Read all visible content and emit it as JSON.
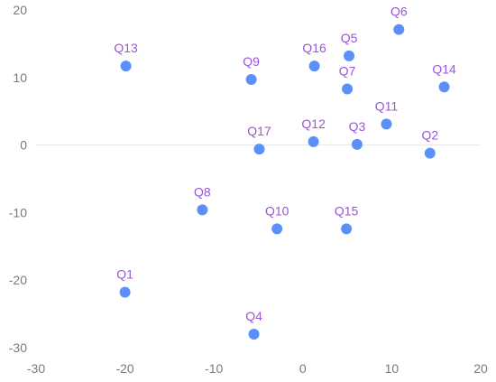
{
  "chart_data": {
    "type": "scatter",
    "title": "",
    "xlabel": "",
    "ylabel": "",
    "xlim": [
      -30,
      20
    ],
    "ylim": [
      -30,
      20
    ],
    "x_ticks": [
      "-30",
      "-20",
      "-10",
      "0",
      "10",
      "20"
    ],
    "y_ticks": [
      "20",
      "10",
      "0",
      "-10",
      "-20",
      "-30"
    ],
    "grid": false,
    "zero_line": true,
    "point_color": "#5b8ff9",
    "label_color": "#9a55d8",
    "points": [
      {
        "label": "Q1",
        "x": -20.0,
        "y": -21.8
      },
      {
        "label": "Q2",
        "x": 14.3,
        "y": -1.2
      },
      {
        "label": "Q3",
        "x": 6.1,
        "y": 0.1
      },
      {
        "label": "Q4",
        "x": -5.5,
        "y": -28.0
      },
      {
        "label": "Q5",
        "x": 5.2,
        "y": 13.2
      },
      {
        "label": "Q6",
        "x": 10.8,
        "y": 17.1
      },
      {
        "label": "Q7",
        "x": 5.0,
        "y": 8.3
      },
      {
        "label": "Q8",
        "x": -11.3,
        "y": -9.6
      },
      {
        "label": "Q9",
        "x": -5.8,
        "y": 9.7
      },
      {
        "label": "Q10",
        "x": -2.9,
        "y": -12.4
      },
      {
        "label": "Q11",
        "x": 9.4,
        "y": 3.1
      },
      {
        "label": "Q12",
        "x": 1.2,
        "y": 0.5
      },
      {
        "label": "Q13",
        "x": -19.9,
        "y": 11.7
      },
      {
        "label": "Q14",
        "x": 15.9,
        "y": 8.6
      },
      {
        "label": "Q15",
        "x": 4.9,
        "y": -12.4
      },
      {
        "label": "Q16",
        "x": 1.3,
        "y": 11.7
      },
      {
        "label": "Q17",
        "x": -4.9,
        "y": -0.6
      }
    ]
  }
}
